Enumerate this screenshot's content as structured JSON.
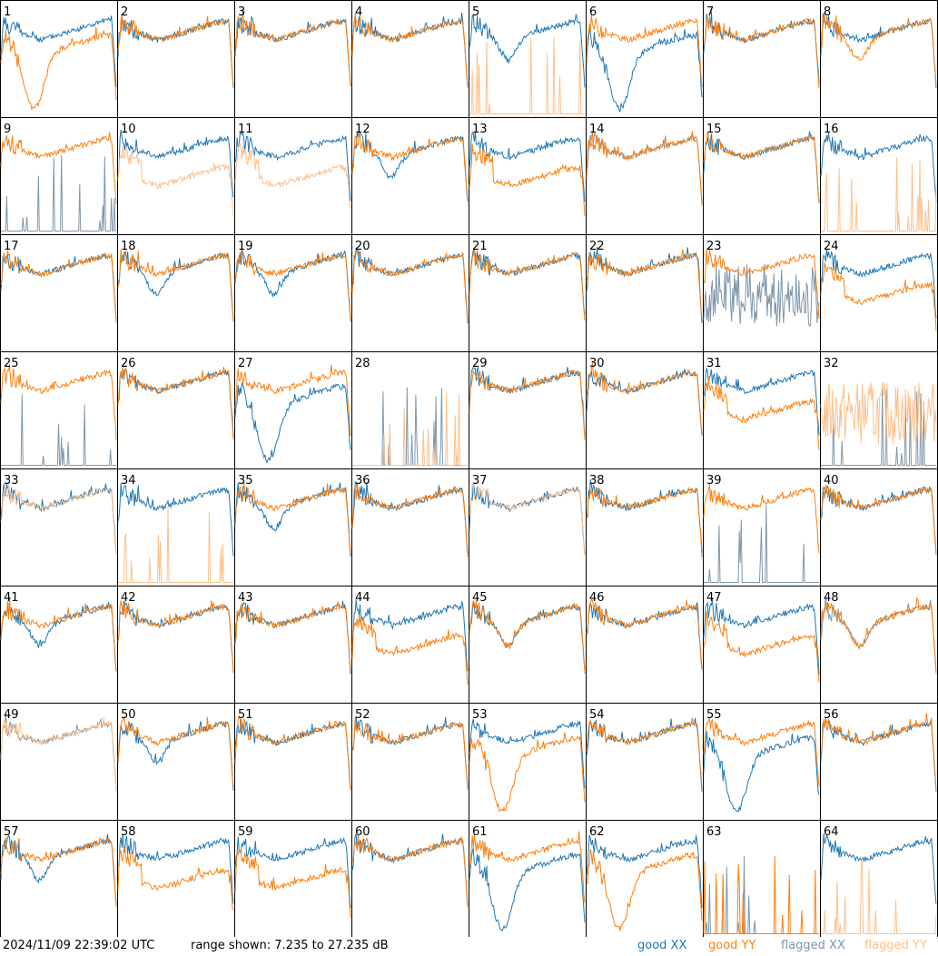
{
  "footer": {
    "timestamp": "2024/11/09 22:39:02 UTC",
    "range_text": "range shown: 7.235 to 27.235 dB",
    "legend": [
      "good XX",
      "good YY",
      "flagged XX",
      "flagged YY"
    ]
  },
  "colors": {
    "good_xx": "#1f77b4",
    "good_yy": "#ff7f0e",
    "flagged_xx": "#7f96aa",
    "flagged_yy": "#ffc08a"
  },
  "chart_data": {
    "type": "line",
    "layout": "8x8 small multiples",
    "y_unit": "dB",
    "ylim": [
      7.235,
      27.235
    ],
    "panel_labels": [
      "1",
      "2",
      "3",
      "4",
      "5",
      "6",
      "7",
      "8",
      "9",
      "10",
      "11",
      "12",
      "13",
      "14",
      "15",
      "16",
      "17",
      "18",
      "19",
      "20",
      "21",
      "22",
      "23",
      "24",
      "25",
      "26",
      "27",
      "28",
      "29",
      "30",
      "31",
      "32",
      "33",
      "34",
      "35",
      "36",
      "37",
      "38",
      "39",
      "40",
      "41",
      "42",
      "43",
      "44",
      "45",
      "46",
      "47",
      "48",
      "49",
      "50",
      "51",
      "52",
      "53",
      "54",
      "55",
      "56",
      "57",
      "58",
      "59",
      "60",
      "61",
      "62",
      "63",
      "64"
    ],
    "series": [
      "good XX",
      "good YY",
      "flagged XX",
      "flagged YY"
    ],
    "panels": [
      {
        "id": 1,
        "xx": "good",
        "yy": "good",
        "shape_xx": "flat",
        "shape_yy": "deepdip"
      },
      {
        "id": 2,
        "xx": "good",
        "yy": "good",
        "shape_xx": "flat",
        "shape_yy": "flat"
      },
      {
        "id": 3,
        "xx": "good",
        "yy": "good",
        "shape_xx": "flat",
        "shape_yy": "flat"
      },
      {
        "id": 4,
        "xx": "good",
        "yy": "good",
        "shape_xx": "flat",
        "shape_yy": "flat"
      },
      {
        "id": 5,
        "xx": "good",
        "yy": "flagged",
        "shape_xx": "dip",
        "shape_yy": "dead"
      },
      {
        "id": 6,
        "xx": "good",
        "yy": "good",
        "shape_xx": "deepdip",
        "shape_yy": "flat"
      },
      {
        "id": 7,
        "xx": "good",
        "yy": "good",
        "shape_xx": "flat",
        "shape_yy": "flat"
      },
      {
        "id": 8,
        "xx": "good",
        "yy": "good",
        "shape_xx": "flat",
        "shape_yy": "dip"
      },
      {
        "id": 9,
        "xx": "flagged",
        "yy": "good",
        "shape_xx": "dead",
        "shape_yy": "flat"
      },
      {
        "id": 10,
        "xx": "good",
        "yy": "flagged",
        "shape_xx": "flat",
        "shape_yy": "low"
      },
      {
        "id": 11,
        "xx": "good",
        "yy": "flagged",
        "shape_xx": "flat",
        "shape_yy": "low"
      },
      {
        "id": 12,
        "xx": "good",
        "yy": "good",
        "shape_xx": "dip",
        "shape_yy": "flat"
      },
      {
        "id": 13,
        "xx": "good",
        "yy": "good",
        "shape_xx": "flat",
        "shape_yy": "low"
      },
      {
        "id": 14,
        "xx": "flagged",
        "yy": "good",
        "shape_xx": "flat",
        "shape_yy": "flat"
      },
      {
        "id": 15,
        "xx": "good",
        "yy": "good",
        "shape_xx": "flat",
        "shape_yy": "flat"
      },
      {
        "id": 16,
        "xx": "good",
        "yy": "flagged",
        "shape_xx": "flat",
        "shape_yy": "dead"
      },
      {
        "id": 17,
        "xx": "good",
        "yy": "good",
        "shape_xx": "flat",
        "shape_yy": "flat"
      },
      {
        "id": 18,
        "xx": "good",
        "yy": "good",
        "shape_xx": "dip",
        "shape_yy": "flat"
      },
      {
        "id": 19,
        "xx": "good",
        "yy": "good",
        "shape_xx": "dip",
        "shape_yy": "flat"
      },
      {
        "id": 20,
        "xx": "good",
        "yy": "good",
        "shape_xx": "flat",
        "shape_yy": "flat"
      },
      {
        "id": 21,
        "xx": "good",
        "yy": "good",
        "shape_xx": "flat",
        "shape_yy": "flat"
      },
      {
        "id": 22,
        "xx": "good",
        "yy": "good",
        "shape_xx": "flat",
        "shape_yy": "flat"
      },
      {
        "id": 23,
        "xx": "flagged",
        "yy": "good",
        "shape_xx": "noisy",
        "shape_yy": "flat"
      },
      {
        "id": 24,
        "xx": "good",
        "yy": "good",
        "shape_xx": "flat",
        "shape_yy": "low"
      },
      {
        "id": 25,
        "xx": "flagged",
        "yy": "good",
        "shape_xx": "dead",
        "shape_yy": "flat"
      },
      {
        "id": 26,
        "xx": "good",
        "yy": "good",
        "shape_xx": "flat",
        "shape_yy": "flat"
      },
      {
        "id": 27,
        "xx": "good",
        "yy": "good",
        "shape_xx": "deepdip",
        "shape_yy": "flat"
      },
      {
        "id": 28,
        "xx": "flagged",
        "yy": "flagged",
        "shape_xx": "dead",
        "shape_yy": "dead"
      },
      {
        "id": 29,
        "xx": "good",
        "yy": "good",
        "shape_xx": "flat",
        "shape_yy": "flat"
      },
      {
        "id": 30,
        "xx": "good",
        "yy": "good",
        "shape_xx": "flat",
        "shape_yy": "flat"
      },
      {
        "id": 31,
        "xx": "good",
        "yy": "good",
        "shape_xx": "flat",
        "shape_yy": "low"
      },
      {
        "id": 32,
        "xx": "flagged",
        "yy": "flagged",
        "shape_xx": "dead",
        "shape_yy": "noisy"
      },
      {
        "id": 33,
        "xx": "good",
        "yy": "flagged",
        "shape_xx": "flat",
        "shape_yy": "flat"
      },
      {
        "id": 34,
        "xx": "good",
        "yy": "flagged",
        "shape_xx": "flat",
        "shape_yy": "dead"
      },
      {
        "id": 35,
        "xx": "good",
        "yy": "good",
        "shape_xx": "dip",
        "shape_yy": "flat"
      },
      {
        "id": 36,
        "xx": "good",
        "yy": "good",
        "shape_xx": "flat",
        "shape_yy": "flat"
      },
      {
        "id": 37,
        "xx": "good",
        "yy": "flagged",
        "shape_xx": "flat",
        "shape_yy": "flat"
      },
      {
        "id": 38,
        "xx": "good",
        "yy": "good",
        "shape_xx": "flat",
        "shape_yy": "flat"
      },
      {
        "id": 39,
        "xx": "flagged",
        "yy": "good",
        "shape_xx": "dead",
        "shape_yy": "flat"
      },
      {
        "id": 40,
        "xx": "good",
        "yy": "good",
        "shape_xx": "flat",
        "shape_yy": "flat"
      },
      {
        "id": 41,
        "xx": "good",
        "yy": "good",
        "shape_xx": "dip",
        "shape_yy": "flat"
      },
      {
        "id": 42,
        "xx": "good",
        "yy": "good",
        "shape_xx": "flat",
        "shape_yy": "flat"
      },
      {
        "id": 43,
        "xx": "good",
        "yy": "good",
        "shape_xx": "flat",
        "shape_yy": "flat"
      },
      {
        "id": 44,
        "xx": "good",
        "yy": "good",
        "shape_xx": "flat",
        "shape_yy": "low"
      },
      {
        "id": 45,
        "xx": "good",
        "yy": "good",
        "shape_xx": "dip",
        "shape_yy": "dip"
      },
      {
        "id": 46,
        "xx": "good",
        "yy": "good",
        "shape_xx": "flat",
        "shape_yy": "flat"
      },
      {
        "id": 47,
        "xx": "good",
        "yy": "good",
        "shape_xx": "flat",
        "shape_yy": "low"
      },
      {
        "id": 48,
        "xx": "flagged",
        "yy": "good",
        "shape_xx": "dip",
        "shape_yy": "dip"
      },
      {
        "id": 49,
        "xx": "flagged",
        "yy": "flagged",
        "shape_xx": "flat",
        "shape_yy": "flat"
      },
      {
        "id": 50,
        "xx": "good",
        "yy": "good",
        "shape_xx": "dip",
        "shape_yy": "flat"
      },
      {
        "id": 51,
        "xx": "good",
        "yy": "good",
        "shape_xx": "flat",
        "shape_yy": "flat"
      },
      {
        "id": 52,
        "xx": "good",
        "yy": "good",
        "shape_xx": "flat",
        "shape_yy": "flat"
      },
      {
        "id": 53,
        "xx": "good",
        "yy": "good",
        "shape_xx": "flat",
        "shape_yy": "deepdip"
      },
      {
        "id": 54,
        "xx": "good",
        "yy": "good",
        "shape_xx": "flat",
        "shape_yy": "flat"
      },
      {
        "id": 55,
        "xx": "good",
        "yy": "good",
        "shape_xx": "deepdip",
        "shape_yy": "flat"
      },
      {
        "id": 56,
        "xx": "good",
        "yy": "good",
        "shape_xx": "flat",
        "shape_yy": "flat"
      },
      {
        "id": 57,
        "xx": "good",
        "yy": "good",
        "shape_xx": "dip",
        "shape_yy": "flat"
      },
      {
        "id": 58,
        "xx": "good",
        "yy": "good",
        "shape_xx": "flat",
        "shape_yy": "low"
      },
      {
        "id": 59,
        "xx": "good",
        "yy": "good",
        "shape_xx": "flat",
        "shape_yy": "low"
      },
      {
        "id": 60,
        "xx": "good",
        "yy": "good",
        "shape_xx": "flat",
        "shape_yy": "flat"
      },
      {
        "id": 61,
        "xx": "good",
        "yy": "good",
        "shape_xx": "deepdip",
        "shape_yy": "flat"
      },
      {
        "id": 62,
        "xx": "good",
        "yy": "good",
        "shape_xx": "flat",
        "shape_yy": "deepdip"
      },
      {
        "id": 63,
        "xx": "flagged",
        "yy": "good",
        "shape_xx": "dead",
        "shape_yy": "dead"
      },
      {
        "id": 64,
        "xx": "good",
        "yy": "flagged",
        "shape_xx": "flat",
        "shape_yy": "dead"
      }
    ]
  }
}
